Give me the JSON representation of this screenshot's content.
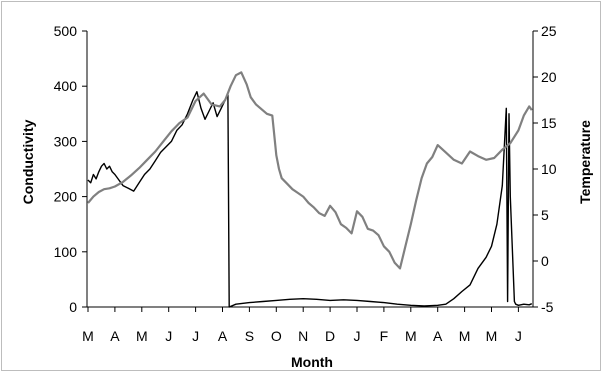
{
  "chart_data": {
    "type": "line",
    "xlabel": "Month",
    "ylabel_left": "Conductivity",
    "ylabel_right": "Temperature",
    "x_categories": [
      "M",
      "A",
      "M",
      "J",
      "J",
      "A",
      "S",
      "O",
      "N",
      "D",
      "J",
      "F",
      "M",
      "A",
      "M",
      "M",
      "J"
    ],
    "y_left": {
      "min": 0,
      "max": 500,
      "ticks": [
        "0",
        "100",
        "200",
        "300",
        "400",
        "500"
      ]
    },
    "y_right": {
      "min": -5,
      "max": 25,
      "ticks": [
        "-5",
        "0",
        "5",
        "10",
        "15",
        "20",
        "25"
      ]
    },
    "grid": false,
    "legend": "none",
    "series": [
      {
        "axis": "left",
        "color": "#000000",
        "x": [
          0,
          0.1,
          0.2,
          0.3,
          0.4,
          0.5,
          0.6,
          0.7,
          0.8,
          0.9,
          1.0,
          1.15,
          1.3,
          1.5,
          1.7,
          1.9,
          2.1,
          2.3,
          2.5,
          2.7,
          2.9,
          3.1,
          3.3,
          3.5,
          3.7,
          3.9,
          4.05,
          4.2,
          4.35,
          4.5,
          4.65,
          4.8,
          4.95,
          5.1,
          5.2,
          5.25,
          5.5,
          6.0,
          6.5,
          7.0,
          7.5,
          8.0,
          8.5,
          9.0,
          9.5,
          10.0,
          10.5,
          11.0,
          11.5,
          12.0,
          12.5,
          13.0,
          13.3,
          13.6,
          13.9,
          14.2,
          14.5,
          14.8,
          15.0,
          15.2,
          15.4,
          15.55,
          15.6,
          15.65,
          15.7,
          15.85,
          15.9,
          16.0,
          16.2,
          16.4,
          16.5
        ],
        "y": [
          230,
          225,
          240,
          232,
          245,
          255,
          260,
          250,
          255,
          245,
          240,
          230,
          220,
          215,
          210,
          225,
          240,
          250,
          265,
          280,
          290,
          300,
          320,
          330,
          350,
          375,
          390,
          360,
          340,
          355,
          370,
          345,
          360,
          375,
          385,
          0,
          5,
          8,
          10,
          12,
          14,
          15,
          14,
          12,
          13,
          12,
          10,
          8,
          5,
          3,
          2,
          3,
          5,
          15,
          28,
          40,
          70,
          90,
          110,
          150,
          220,
          360,
          10,
          350,
          200,
          10,
          5,
          3,
          5,
          4,
          6
        ]
      },
      {
        "axis": "right",
        "color": "#808080",
        "x": [
          0,
          0.2,
          0.4,
          0.6,
          0.8,
          1.0,
          1.3,
          1.6,
          1.9,
          2.2,
          2.5,
          2.8,
          3.1,
          3.4,
          3.7,
          4.0,
          4.3,
          4.6,
          4.9,
          5.1,
          5.3,
          5.5,
          5.7,
          5.9,
          6.05,
          6.25,
          6.45,
          6.65,
          6.85,
          7.0,
          7.1,
          7.2,
          7.4,
          7.6,
          7.8,
          8.0,
          8.2,
          8.4,
          8.6,
          8.8,
          9.0,
          9.2,
          9.4,
          9.6,
          9.8,
          10.0,
          10.2,
          10.4,
          10.6,
          10.8,
          11.0,
          11.2,
          11.4,
          11.6,
          11.8,
          12.0,
          12.2,
          12.4,
          12.6,
          12.8,
          13.0,
          13.3,
          13.6,
          13.9,
          14.2,
          14.5,
          14.8,
          15.1,
          15.4,
          15.7,
          16.0,
          16.2,
          16.4,
          16.5
        ],
        "y": [
          6.3,
          7.0,
          7.5,
          7.8,
          7.9,
          8.1,
          8.6,
          9.3,
          10.1,
          11.0,
          11.9,
          13.0,
          14.1,
          15.0,
          15.6,
          17.4,
          18.2,
          17.0,
          16.8,
          17.5,
          19.0,
          20.2,
          20.5,
          19.2,
          17.8,
          17.0,
          16.5,
          16.0,
          15.8,
          11.5,
          10.0,
          9.0,
          8.4,
          7.8,
          7.4,
          7.0,
          6.3,
          5.8,
          5.2,
          4.9,
          6.0,
          5.3,
          4.0,
          3.6,
          3.0,
          5.4,
          4.8,
          3.5,
          3.3,
          2.8,
          1.6,
          1.0,
          -0.2,
          -0.8,
          1.6,
          4.0,
          6.6,
          9.0,
          10.6,
          11.3,
          12.6,
          11.8,
          11.0,
          10.6,
          11.9,
          11.4,
          11.0,
          11.2,
          12.1,
          12.8,
          14.2,
          15.8,
          16.8,
          16.4
        ]
      }
    ]
  }
}
